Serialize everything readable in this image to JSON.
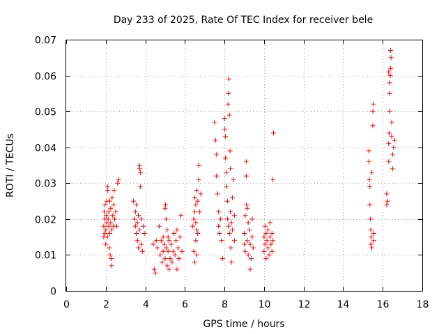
{
  "chart_data": {
    "type": "scatter",
    "title": "Day 233 of 2025, Rate Of TEC Index for receiver bele",
    "xlabel": "GPS time / hours",
    "ylabel": "ROTI / TECUs",
    "xlim": [
      0,
      18
    ],
    "ylim": [
      0,
      0.07
    ],
    "xticks": [
      0,
      2,
      4,
      6,
      8,
      10,
      12,
      14,
      16,
      18
    ],
    "xtick_labels": [
      "0",
      "2",
      "4",
      "6",
      "8",
      "10",
      "12",
      "14",
      "16",
      "18"
    ],
    "yticks": [
      0,
      0.01,
      0.02,
      0.03,
      0.04,
      0.05,
      0.06,
      0.07
    ],
    "ytick_labels": [
      "0",
      "0.01",
      "0.02",
      "0.03",
      "0.04",
      "0.05",
      "0.06",
      "0.07"
    ],
    "grid": true,
    "marker": "+",
    "color": "#ff0000",
    "series": [
      {
        "points": [
          [
            1.9,
            0.015
          ],
          [
            1.9,
            0.018
          ],
          [
            1.92,
            0.022
          ],
          [
            1.95,
            0.016
          ],
          [
            1.95,
            0.02
          ],
          [
            1.97,
            0.024
          ],
          [
            2.0,
            0.013
          ],
          [
            2.0,
            0.017
          ],
          [
            2.02,
            0.021
          ],
          [
            2.05,
            0.019
          ],
          [
            2.05,
            0.025
          ],
          [
            2.08,
            0.015
          ],
          [
            2.1,
            0.028
          ],
          [
            2.1,
            0.029
          ],
          [
            2.12,
            0.02
          ],
          [
            2.15,
            0.018
          ],
          [
            2.15,
            0.022
          ],
          [
            2.18,
            0.012
          ],
          [
            2.2,
            0.016
          ],
          [
            2.2,
            0.025
          ],
          [
            2.22,
            0.01
          ],
          [
            2.25,
            0.019
          ],
          [
            2.25,
            0.023
          ],
          [
            2.28,
            0.009
          ],
          [
            2.3,
            0.007
          ],
          [
            2.3,
            0.017
          ],
          [
            2.32,
            0.026
          ],
          [
            2.35,
            0.021
          ],
          [
            2.38,
            0.018
          ],
          [
            2.4,
            0.024
          ],
          [
            2.42,
            0.028
          ],
          [
            2.45,
            0.02
          ],
          [
            2.5,
            0.022
          ],
          [
            2.55,
            0.018
          ],
          [
            2.6,
            0.03
          ],
          [
            2.65,
            0.031
          ],
          [
            3.4,
            0.025
          ],
          [
            3.45,
            0.02
          ],
          [
            3.5,
            0.022
          ],
          [
            3.5,
            0.018
          ],
          [
            3.55,
            0.016
          ],
          [
            3.55,
            0.024
          ],
          [
            3.6,
            0.014
          ],
          [
            3.6,
            0.019
          ],
          [
            3.65,
            0.012
          ],
          [
            3.65,
            0.021
          ],
          [
            3.7,
            0.017
          ],
          [
            3.7,
            0.035
          ],
          [
            3.72,
            0.034
          ],
          [
            3.75,
            0.033
          ],
          [
            3.75,
            0.029
          ],
          [
            3.8,
            0.013
          ],
          [
            3.8,
            0.02
          ],
          [
            3.85,
            0.011
          ],
          [
            3.9,
            0.018
          ],
          [
            3.95,
            0.016
          ],
          [
            4.4,
            0.013
          ],
          [
            4.45,
            0.006
          ],
          [
            4.5,
            0.005
          ],
          [
            4.55,
            0.014
          ],
          [
            4.6,
            0.012
          ],
          [
            4.7,
            0.018
          ],
          [
            4.75,
            0.01
          ],
          [
            4.8,
            0.014
          ],
          [
            4.85,
            0.008
          ],
          [
            4.9,
            0.011
          ],
          [
            4.9,
            0.015
          ],
          [
            4.95,
            0.013
          ],
          [
            5.0,
            0.009
          ],
          [
            5.0,
            0.023
          ],
          [
            5.02,
            0.024
          ],
          [
            5.05,
            0.02
          ],
          [
            5.05,
            0.012
          ],
          [
            5.1,
            0.017
          ],
          [
            5.1,
            0.007
          ],
          [
            5.15,
            0.015
          ],
          [
            5.15,
            0.011
          ],
          [
            5.2,
            0.014
          ],
          [
            5.2,
            0.006
          ],
          [
            5.25,
            0.009
          ],
          [
            5.3,
            0.013
          ],
          [
            5.35,
            0.008
          ],
          [
            5.4,
            0.011
          ],
          [
            5.45,
            0.016
          ],
          [
            5.5,
            0.01
          ],
          [
            5.55,
            0.014
          ],
          [
            5.6,
            0.006
          ],
          [
            5.6,
            0.017
          ],
          [
            5.65,
            0.012
          ],
          [
            5.7,
            0.009
          ],
          [
            5.75,
            0.015
          ],
          [
            5.8,
            0.021
          ],
          [
            5.85,
            0.011
          ],
          [
            6.4,
            0.018
          ],
          [
            6.45,
            0.02
          ],
          [
            6.5,
            0.026
          ],
          [
            6.5,
            0.022
          ],
          [
            6.55,
            0.024
          ],
          [
            6.55,
            0.019
          ],
          [
            6.6,
            0.028
          ],
          [
            6.6,
            0.017
          ],
          [
            6.65,
            0.025
          ],
          [
            6.7,
            0.031
          ],
          [
            6.7,
            0.035
          ],
          [
            6.75,
            0.022
          ],
          [
            6.8,
            0.027
          ],
          [
            6.45,
            0.011
          ],
          [
            6.5,
            0.008
          ],
          [
            6.55,
            0.014
          ],
          [
            6.6,
            0.01
          ],
          [
            6.65,
            0.016
          ],
          [
            7.5,
            0.047
          ],
          [
            7.55,
            0.042
          ],
          [
            7.6,
            0.038
          ],
          [
            7.6,
            0.032
          ],
          [
            7.65,
            0.027
          ],
          [
            7.7,
            0.022
          ],
          [
            7.7,
            0.018
          ],
          [
            7.75,
            0.016
          ],
          [
            7.8,
            0.02
          ],
          [
            7.85,
            0.014
          ],
          [
            7.9,
            0.009
          ],
          [
            8.0,
            0.048
          ],
          [
            8.02,
            0.045
          ],
          [
            8.05,
            0.043
          ],
          [
            8.05,
            0.037
          ],
          [
            8.1,
            0.033
          ],
          [
            8.1,
            0.029
          ],
          [
            8.15,
            0.025
          ],
          [
            8.15,
            0.02
          ],
          [
            8.18,
            0.052
          ],
          [
            8.2,
            0.055
          ],
          [
            8.2,
            0.018
          ],
          [
            8.22,
            0.059
          ],
          [
            8.25,
            0.049
          ],
          [
            8.25,
            0.016
          ],
          [
            8.28,
            0.039
          ],
          [
            8.3,
            0.034
          ],
          [
            8.3,
            0.022
          ],
          [
            8.32,
            0.012
          ],
          [
            8.35,
            0.008
          ],
          [
            8.35,
            0.019
          ],
          [
            8.4,
            0.026
          ],
          [
            8.4,
            0.017
          ],
          [
            8.45,
            0.031
          ],
          [
            8.5,
            0.014
          ],
          [
            8.5,
            0.021
          ],
          [
            9.0,
            0.013
          ],
          [
            9.0,
            0.016
          ],
          [
            9.05,
            0.011
          ],
          [
            9.05,
            0.021
          ],
          [
            9.1,
            0.036
          ],
          [
            9.1,
            0.032
          ],
          [
            9.12,
            0.024
          ],
          [
            9.15,
            0.023
          ],
          [
            9.15,
            0.014
          ],
          [
            9.2,
            0.019
          ],
          [
            9.2,
            0.01
          ],
          [
            9.25,
            0.017
          ],
          [
            9.3,
            0.006
          ],
          [
            9.3,
            0.013
          ],
          [
            9.35,
            0.009
          ],
          [
            9.4,
            0.02
          ],
          [
            9.4,
            0.015
          ],
          [
            9.45,
            0.012
          ],
          [
            10.0,
            0.015
          ],
          [
            10.0,
            0.011
          ],
          [
            10.05,
            0.018
          ],
          [
            10.05,
            0.013
          ],
          [
            10.1,
            0.016
          ],
          [
            10.1,
            0.009
          ],
          [
            10.15,
            0.014
          ],
          [
            10.2,
            0.012
          ],
          [
            10.2,
            0.017
          ],
          [
            10.25,
            0.01
          ],
          [
            10.3,
            0.015
          ],
          [
            10.3,
            0.019
          ],
          [
            10.35,
            0.013
          ],
          [
            10.4,
            0.011
          ],
          [
            10.4,
            0.016
          ],
          [
            10.45,
            0.014
          ],
          [
            10.45,
            0.031
          ],
          [
            10.48,
            0.044
          ],
          [
            15.3,
            0.039
          ],
          [
            15.3,
            0.036
          ],
          [
            15.32,
            0.031
          ],
          [
            15.35,
            0.029
          ],
          [
            15.35,
            0.024
          ],
          [
            15.38,
            0.02
          ],
          [
            15.4,
            0.017
          ],
          [
            15.4,
            0.013
          ],
          [
            15.42,
            0.015
          ],
          [
            15.45,
            0.012
          ],
          [
            15.45,
            0.033
          ],
          [
            15.5,
            0.046
          ],
          [
            15.5,
            0.05
          ],
          [
            15.52,
            0.052
          ],
          [
            15.55,
            0.016
          ],
          [
            15.55,
            0.014
          ],
          [
            16.2,
            0.027
          ],
          [
            16.2,
            0.024
          ],
          [
            16.25,
            0.025
          ],
          [
            16.3,
            0.036
          ],
          [
            16.3,
            0.041
          ],
          [
            16.32,
            0.044
          ],
          [
            16.35,
            0.05
          ],
          [
            16.35,
            0.055
          ],
          [
            16.38,
            0.06
          ],
          [
            16.4,
            0.062
          ],
          [
            16.4,
            0.067
          ],
          [
            16.42,
            0.065
          ],
          [
            16.45,
            0.047
          ],
          [
            16.45,
            0.043
          ],
          [
            16.5,
            0.038
          ],
          [
            16.5,
            0.034
          ],
          [
            16.55,
            0.04
          ],
          [
            16.6,
            0.042
          ],
          [
            16.3,
            0.061
          ],
          [
            16.35,
            0.058
          ]
        ]
      }
    ]
  }
}
